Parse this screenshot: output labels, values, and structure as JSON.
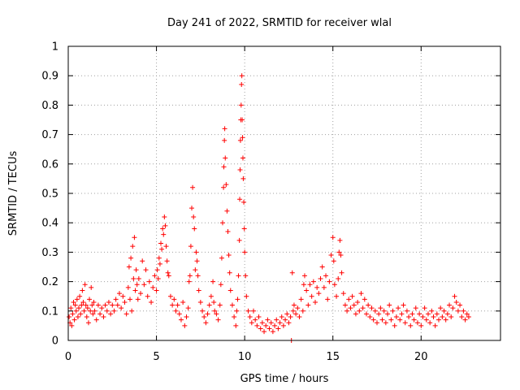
{
  "chart_data": {
    "type": "scatter",
    "title": "Day 241 of 2022, SRMTID for receiver wlal",
    "xlabel": "GPS time / hours",
    "ylabel": "SRMTID / TECUs",
    "xlim": [
      0,
      24.5
    ],
    "ylim": [
      0,
      1
    ],
    "grid": true,
    "marker": "+",
    "marker_color": "#ff0000",
    "x_ticks": [
      {
        "value": 0,
        "label": "0"
      },
      {
        "value": 5,
        "label": "5"
      },
      {
        "value": 10,
        "label": "10"
      },
      {
        "value": 15,
        "label": "15"
      },
      {
        "value": 20,
        "label": "20"
      }
    ],
    "y_ticks": [
      {
        "value": 0,
        "label": "0"
      },
      {
        "value": 0.1,
        "label": "0.1"
      },
      {
        "value": 0.2,
        "label": "0.2"
      },
      {
        "value": 0.3,
        "label": "0.3"
      },
      {
        "value": 0.4,
        "label": "0.4"
      },
      {
        "value": 0.5,
        "label": "0.5"
      },
      {
        "value": 0.6,
        "label": "0.6"
      },
      {
        "value": 0.7,
        "label": "0.7"
      },
      {
        "value": 0.8,
        "label": "0.8"
      },
      {
        "value": 0.9,
        "label": "0.9"
      },
      {
        "value": 1,
        "label": "1"
      }
    ],
    "series": [
      {
        "name": "SRMTID",
        "points": [
          [
            0.05,
            0.08
          ],
          [
            0.1,
            0.06
          ],
          [
            0.15,
            0.11
          ],
          [
            0.2,
            0.05
          ],
          [
            0.25,
            0.09
          ],
          [
            0.3,
            0.13
          ],
          [
            0.35,
            0.07
          ],
          [
            0.4,
            0.12
          ],
          [
            0.45,
            0.1
          ],
          [
            0.5,
            0.14
          ],
          [
            0.55,
            0.08
          ],
          [
            0.6,
            0.11
          ],
          [
            0.65,
            0.15
          ],
          [
            0.7,
            0.09
          ],
          [
            0.75,
            0.12
          ],
          [
            0.8,
            0.17
          ],
          [
            0.85,
            0.13
          ],
          [
            0.9,
            0.1
          ],
          [
            0.95,
            0.19
          ],
          [
            1.0,
            0.12
          ],
          [
            1.05,
            0.08
          ],
          [
            1.1,
            0.11
          ],
          [
            1.15,
            0.06
          ],
          [
            1.2,
            0.14
          ],
          [
            1.25,
            0.1
          ],
          [
            1.3,
            0.18
          ],
          [
            1.35,
            0.12
          ],
          [
            1.4,
            0.09
          ],
          [
            1.45,
            0.13
          ],
          [
            1.5,
            0.1
          ],
          [
            1.6,
            0.07
          ],
          [
            1.7,
            0.12
          ],
          [
            1.8,
            0.09
          ],
          [
            1.9,
            0.11
          ],
          [
            2.0,
            0.08
          ],
          [
            2.1,
            0.12
          ],
          [
            2.2,
            0.1
          ],
          [
            2.3,
            0.13
          ],
          [
            2.4,
            0.09
          ],
          [
            2.5,
            0.12
          ],
          [
            2.6,
            0.1
          ],
          [
            2.7,
            0.14
          ],
          [
            2.8,
            0.12
          ],
          [
            2.9,
            0.16
          ],
          [
            3.0,
            0.11
          ],
          [
            3.1,
            0.15
          ],
          [
            3.2,
            0.13
          ],
          [
            3.3,
            0.09
          ],
          [
            3.4,
            0.18
          ],
          [
            3.45,
            0.25
          ],
          [
            3.5,
            0.14
          ],
          [
            3.55,
            0.28
          ],
          [
            3.6,
            0.1
          ],
          [
            3.65,
            0.32
          ],
          [
            3.7,
            0.21
          ],
          [
            3.75,
            0.35
          ],
          [
            3.8,
            0.17
          ],
          [
            3.85,
            0.24
          ],
          [
            3.9,
            0.19
          ],
          [
            3.95,
            0.14
          ],
          [
            4.0,
            0.21
          ],
          [
            4.1,
            0.16
          ],
          [
            4.2,
            0.27
          ],
          [
            4.3,
            0.19
          ],
          [
            4.4,
            0.24
          ],
          [
            4.5,
            0.15
          ],
          [
            4.6,
            0.2
          ],
          [
            4.7,
            0.13
          ],
          [
            4.8,
            0.18
          ],
          [
            4.9,
            0.22
          ],
          [
            5.0,
            0.17
          ],
          [
            5.05,
            0.24
          ],
          [
            5.1,
            0.21
          ],
          [
            5.15,
            0.28
          ],
          [
            5.2,
            0.26
          ],
          [
            5.25,
            0.33
          ],
          [
            5.3,
            0.31
          ],
          [
            5.35,
            0.38
          ],
          [
            5.4,
            0.36
          ],
          [
            5.45,
            0.42
          ],
          [
            5.5,
            0.39
          ],
          [
            5.55,
            0.32
          ],
          [
            5.6,
            0.27
          ],
          [
            5.65,
            0.23
          ],
          [
            5.7,
            0.22
          ],
          [
            5.8,
            0.15
          ],
          [
            5.9,
            0.12
          ],
          [
            6.0,
            0.14
          ],
          [
            6.1,
            0.1
          ],
          [
            6.2,
            0.12
          ],
          [
            6.3,
            0.09
          ],
          [
            6.4,
            0.07
          ],
          [
            6.5,
            0.13
          ],
          [
            6.6,
            0.05
          ],
          [
            6.7,
            0.08
          ],
          [
            6.8,
            0.11
          ],
          [
            6.85,
            0.2
          ],
          [
            6.9,
            0.22
          ],
          [
            6.95,
            0.32
          ],
          [
            7.0,
            0.45
          ],
          [
            7.05,
            0.52
          ],
          [
            7.1,
            0.42
          ],
          [
            7.15,
            0.38
          ],
          [
            7.2,
            0.24
          ],
          [
            7.25,
            0.3
          ],
          [
            7.3,
            0.27
          ],
          [
            7.35,
            0.22
          ],
          [
            7.4,
            0.17
          ],
          [
            7.5,
            0.13
          ],
          [
            7.6,
            0.1
          ],
          [
            7.7,
            0.08
          ],
          [
            7.8,
            0.06
          ],
          [
            7.9,
            0.09
          ],
          [
            8.0,
            0.12
          ],
          [
            8.1,
            0.15
          ],
          [
            8.2,
            0.2
          ],
          [
            8.25,
            0.13
          ],
          [
            8.3,
            0.1
          ],
          [
            8.4,
            0.09
          ],
          [
            8.5,
            0.07
          ],
          [
            8.6,
            0.12
          ],
          [
            8.65,
            0.19
          ],
          [
            8.7,
            0.28
          ],
          [
            8.75,
            0.4
          ],
          [
            8.8,
            0.52
          ],
          [
            8.82,
            0.59
          ],
          [
            8.85,
            0.68
          ],
          [
            8.87,
            0.72
          ],
          [
            8.9,
            0.62
          ],
          [
            8.95,
            0.53
          ],
          [
            9.0,
            0.44
          ],
          [
            9.05,
            0.37
          ],
          [
            9.1,
            0.29
          ],
          [
            9.15,
            0.23
          ],
          [
            9.2,
            0.17
          ],
          [
            9.3,
            0.12
          ],
          [
            9.4,
            0.08
          ],
          [
            9.5,
            0.05
          ],
          [
            9.55,
            0.1
          ],
          [
            9.6,
            0.14
          ],
          [
            9.65,
            0.22
          ],
          [
            9.7,
            0.34
          ],
          [
            9.72,
            0.48
          ],
          [
            9.74,
            0.58
          ],
          [
            9.76,
            0.68
          ],
          [
            9.78,
            0.75
          ],
          [
            9.8,
            0.8
          ],
          [
            9.82,
            0.87
          ],
          [
            9.84,
            0.9
          ],
          [
            9.86,
            0.75
          ],
          [
            9.88,
            0.69
          ],
          [
            9.9,
            0.62
          ],
          [
            9.92,
            0.55
          ],
          [
            9.95,
            0.47
          ],
          [
            9.98,
            0.38
          ],
          [
            10.0,
            0.3
          ],
          [
            10.05,
            0.22
          ],
          [
            10.1,
            0.15
          ],
          [
            10.2,
            0.1
          ],
          [
            10.3,
            0.08
          ],
          [
            10.4,
            0.06
          ],
          [
            10.5,
            0.1
          ],
          [
            10.6,
            0.07
          ],
          [
            10.7,
            0.05
          ],
          [
            10.8,
            0.08
          ],
          [
            10.9,
            0.04
          ],
          [
            11.0,
            0.06
          ],
          [
            11.1,
            0.03
          ],
          [
            11.2,
            0.05
          ],
          [
            11.3,
            0.07
          ],
          [
            11.4,
            0.04
          ],
          [
            11.5,
            0.06
          ],
          [
            11.6,
            0.03
          ],
          [
            11.7,
            0.05
          ],
          [
            11.8,
            0.07
          ],
          [
            11.9,
            0.04
          ],
          [
            12.0,
            0.06
          ],
          [
            12.1,
            0.08
          ],
          [
            12.2,
            0.05
          ],
          [
            12.3,
            0.07
          ],
          [
            12.4,
            0.09
          ],
          [
            12.5,
            0.06
          ],
          [
            12.6,
            0.08
          ],
          [
            12.65,
            0.0
          ],
          [
            12.7,
            0.23
          ],
          [
            12.75,
            0.1
          ],
          [
            12.8,
            0.12
          ],
          [
            12.9,
            0.09
          ],
          [
            13.0,
            0.11
          ],
          [
            13.1,
            0.08
          ],
          [
            13.2,
            0.14
          ],
          [
            13.3,
            0.1
          ],
          [
            13.35,
            0.19
          ],
          [
            13.4,
            0.22
          ],
          [
            13.5,
            0.17
          ],
          [
            13.6,
            0.12
          ],
          [
            13.7,
            0.19
          ],
          [
            13.8,
            0.15
          ],
          [
            13.9,
            0.2
          ],
          [
            14.0,
            0.13
          ],
          [
            14.1,
            0.18
          ],
          [
            14.2,
            0.16
          ],
          [
            14.3,
            0.21
          ],
          [
            14.4,
            0.25
          ],
          [
            14.5,
            0.18
          ],
          [
            14.6,
            0.22
          ],
          [
            14.7,
            0.14
          ],
          [
            14.8,
            0.2
          ],
          [
            14.9,
            0.29
          ],
          [
            15.0,
            0.35
          ],
          [
            15.05,
            0.27
          ],
          [
            15.1,
            0.19
          ],
          [
            15.2,
            0.15
          ],
          [
            15.3,
            0.21
          ],
          [
            15.35,
            0.3
          ],
          [
            15.4,
            0.34
          ],
          [
            15.45,
            0.29
          ],
          [
            15.5,
            0.23
          ],
          [
            15.6,
            0.16
          ],
          [
            15.7,
            0.12
          ],
          [
            15.8,
            0.1
          ],
          [
            15.9,
            0.14
          ],
          [
            16.0,
            0.11
          ],
          [
            16.1,
            0.15
          ],
          [
            16.2,
            0.12
          ],
          [
            16.3,
            0.09
          ],
          [
            16.4,
            0.13
          ],
          [
            16.5,
            0.1
          ],
          [
            16.6,
            0.16
          ],
          [
            16.7,
            0.11
          ],
          [
            16.8,
            0.14
          ],
          [
            16.9,
            0.09
          ],
          [
            17.0,
            0.12
          ],
          [
            17.1,
            0.08
          ],
          [
            17.2,
            0.11
          ],
          [
            17.3,
            0.07
          ],
          [
            17.4,
            0.1
          ],
          [
            17.5,
            0.06
          ],
          [
            17.6,
            0.09
          ],
          [
            17.7,
            0.11
          ],
          [
            17.8,
            0.07
          ],
          [
            17.9,
            0.1
          ],
          [
            18.0,
            0.06
          ],
          [
            18.1,
            0.09
          ],
          [
            18.2,
            0.12
          ],
          [
            18.3,
            0.07
          ],
          [
            18.4,
            0.1
          ],
          [
            18.5,
            0.05
          ],
          [
            18.6,
            0.08
          ],
          [
            18.7,
            0.11
          ],
          [
            18.8,
            0.07
          ],
          [
            18.9,
            0.09
          ],
          [
            19.0,
            0.12
          ],
          [
            19.1,
            0.06
          ],
          [
            19.2,
            0.1
          ],
          [
            19.3,
            0.08
          ],
          [
            19.4,
            0.05
          ],
          [
            19.5,
            0.09
          ],
          [
            19.6,
            0.07
          ],
          [
            19.7,
            0.11
          ],
          [
            19.8,
            0.06
          ],
          [
            19.9,
            0.09
          ],
          [
            20.0,
            0.05
          ],
          [
            20.1,
            0.08
          ],
          [
            20.2,
            0.11
          ],
          [
            20.3,
            0.07
          ],
          [
            20.4,
            0.09
          ],
          [
            20.5,
            0.06
          ],
          [
            20.6,
            0.1
          ],
          [
            20.7,
            0.08
          ],
          [
            20.8,
            0.05
          ],
          [
            20.9,
            0.09
          ],
          [
            21.0,
            0.07
          ],
          [
            21.1,
            0.11
          ],
          [
            21.2,
            0.08
          ],
          [
            21.3,
            0.1
          ],
          [
            21.4,
            0.07
          ],
          [
            21.5,
            0.09
          ],
          [
            21.6,
            0.12
          ],
          [
            21.7,
            0.08
          ],
          [
            21.8,
            0.11
          ],
          [
            21.9,
            0.15
          ],
          [
            22.0,
            0.13
          ],
          [
            22.1,
            0.1
          ],
          [
            22.2,
            0.12
          ],
          [
            22.3,
            0.08
          ],
          [
            22.4,
            0.1
          ],
          [
            22.5,
            0.07
          ],
          [
            22.6,
            0.09
          ],
          [
            22.7,
            0.08
          ]
        ]
      }
    ]
  }
}
